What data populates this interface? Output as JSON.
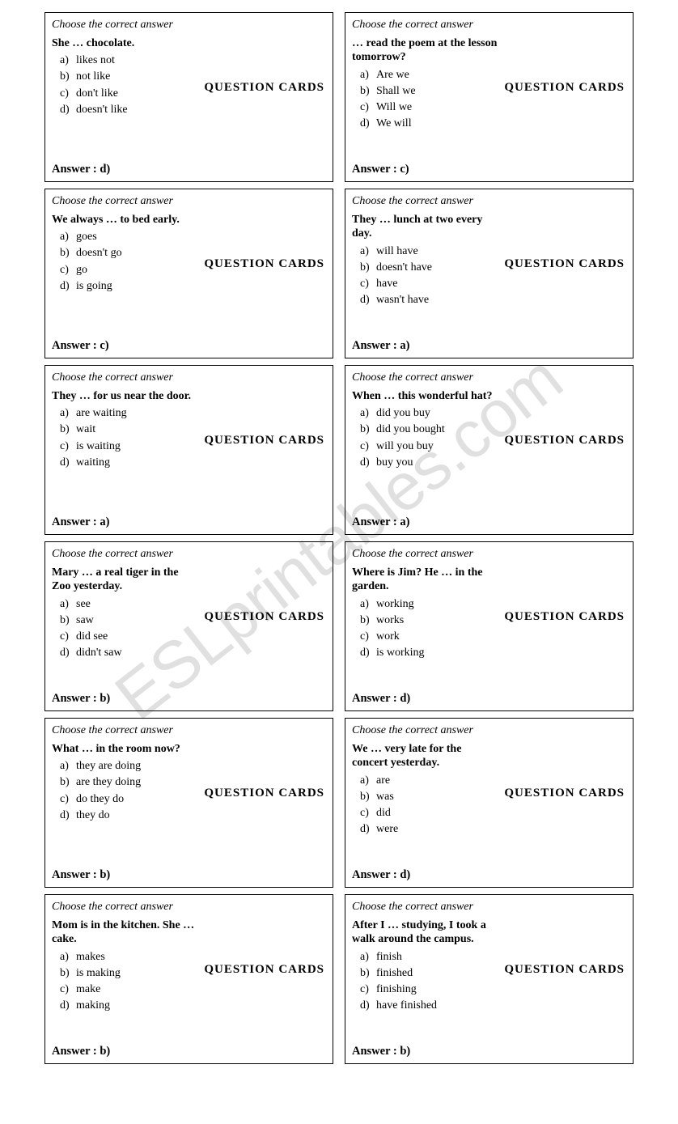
{
  "watermark": "ESLprintables.com",
  "card_title": "QUESTION CARDS",
  "prompt_text": "Choose the correct answer",
  "answer_label": "Answer :",
  "option_letters": [
    "a)",
    "b)",
    "c)",
    "d)"
  ],
  "cards": [
    {
      "question": "She …  chocolate.",
      "options": [
        "likes not",
        "not like",
        "don't like",
        "doesn't like"
      ],
      "answer": "d)"
    },
    {
      "question": "… read the poem at the lesson tomorrow?",
      "options": [
        "Are we",
        "Shall we",
        "Will we",
        "We will"
      ],
      "answer": "c)"
    },
    {
      "question": "We always … to bed early.",
      "options": [
        "goes",
        "doesn't go",
        "go",
        "is going"
      ],
      "answer": "c)"
    },
    {
      "question": "They … lunch at two every day.",
      "options": [
        "will have",
        "doesn't have",
        "have",
        "wasn't have"
      ],
      "answer": "a)"
    },
    {
      "question": "They … for us near the door.",
      "options": [
        "are waiting",
        "wait",
        "is waiting",
        "waiting"
      ],
      "answer": "a)"
    },
    {
      "question": "When … this wonderful hat?",
      "options": [
        "did you buy",
        "did you bought",
        "will you buy",
        "buy you"
      ],
      "answer": "a)"
    },
    {
      "question": "Mary … a real tiger in the Zoo yesterday.",
      "options": [
        "see",
        "saw",
        "did see",
        "didn't saw"
      ],
      "answer": "b)"
    },
    {
      "question": "Where is Jim? He … in the garden.",
      "options": [
        "working",
        "works",
        "work",
        "is working"
      ],
      "answer": "d)"
    },
    {
      "question": "What … in the room now?",
      "options": [
        "they are doing",
        "are they doing",
        "do they do",
        "they do"
      ],
      "answer": "b)"
    },
    {
      "question": "We … very late for the concert yesterday.",
      "options": [
        "are",
        "was",
        "did",
        "were"
      ],
      "answer": "d)"
    },
    {
      "question": "Mom is in the kitchen. She … cake.",
      "options": [
        "makes",
        "is making",
        "make",
        "making"
      ],
      "answer": "b)"
    },
    {
      "question": "After I … studying, I took a walk around the campus.",
      "options": [
        "finish",
        "finished",
        "finishing",
        "have finished"
      ],
      "answer": "b)"
    }
  ]
}
